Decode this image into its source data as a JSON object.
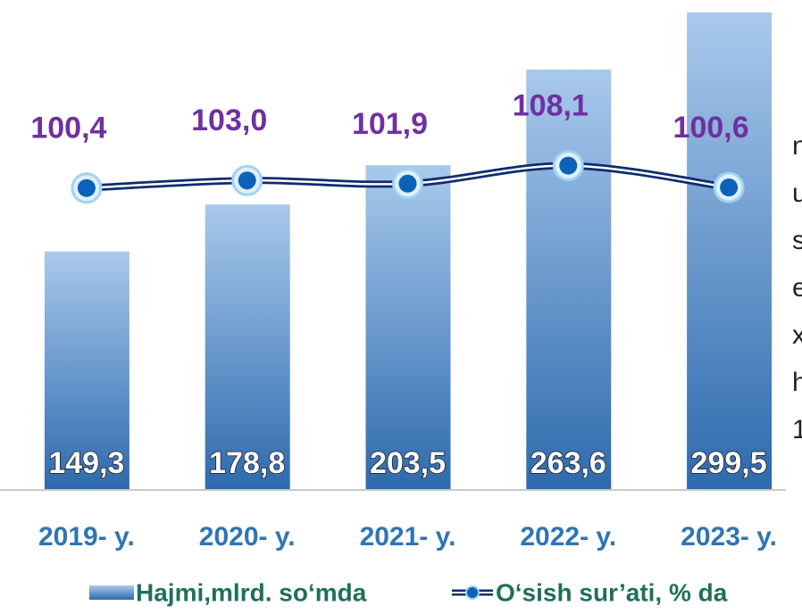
{
  "chart_data": {
    "type": "bar_line",
    "categories": [
      "2019- y.",
      "2020- y.",
      "2021- y.",
      "2022- y.",
      "2023- y."
    ],
    "series": [
      {
        "name": "Hajmi,mlrd. so‘mda",
        "type": "bar",
        "color": "#3f80c4",
        "values": [
          149.3,
          178.8,
          203.5,
          263.6,
          299.5
        ],
        "value_labels": [
          "149,3",
          "178,8",
          "203,5",
          "263,6",
          "299,5"
        ]
      },
      {
        "name": "O‘sish sur’ati, % da",
        "type": "line",
        "axis": "y2",
        "color": "#0d2c6e",
        "values": [
          100.4,
          103.0,
          101.9,
          108.1,
          100.6
        ],
        "value_labels": [
          "100,4",
          "103,0",
          "101,9",
          "108,1",
          "100,6"
        ]
      }
    ],
    "ylim": [
      0,
      300
    ],
    "y2lim": [
      -3,
      161
    ],
    "annotations": [
      "n",
      "u",
      "s",
      "e",
      "x",
      "h",
      "1"
    ]
  }
}
